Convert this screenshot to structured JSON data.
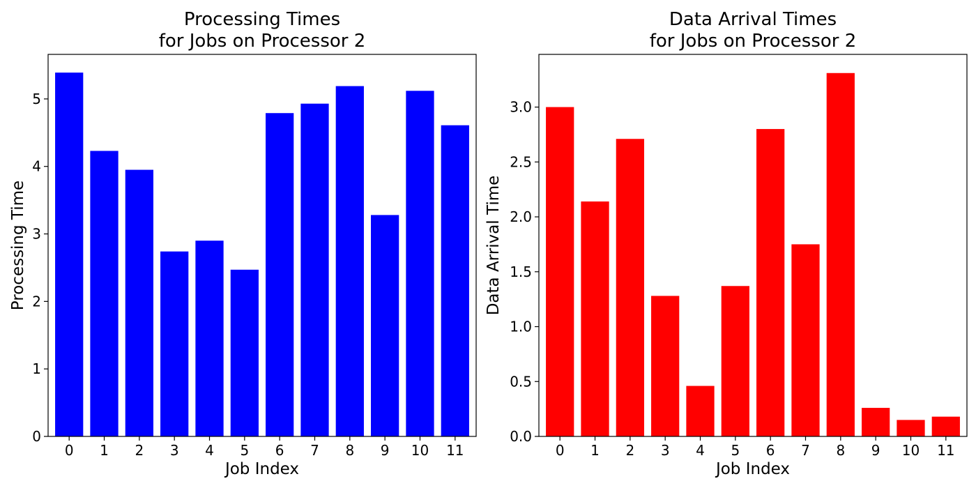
{
  "chart_data": [
    {
      "type": "bar",
      "title": [
        "Processing Times",
        "for Jobs on Processor 2"
      ],
      "xlabel": "Job Index",
      "ylabel": "Processing Time",
      "categories": [
        "0",
        "1",
        "2",
        "3",
        "4",
        "5",
        "6",
        "7",
        "8",
        "9",
        "10",
        "11"
      ],
      "values": [
        5.39,
        4.23,
        3.95,
        2.74,
        2.9,
        2.47,
        4.79,
        4.93,
        5.19,
        3.28,
        5.12,
        4.61
      ],
      "ylim": [
        0,
        5.66
      ],
      "yticks": [
        0,
        1,
        2,
        3,
        4,
        5
      ],
      "ytick_labels": [
        "0",
        "1",
        "2",
        "3",
        "4",
        "5"
      ],
      "color": "#0000ff",
      "grid": false
    },
    {
      "type": "bar",
      "title": [
        "Data Arrival Times",
        "for Jobs on Processor 2"
      ],
      "xlabel": "Job Index",
      "ylabel": "Data Arrival Time",
      "categories": [
        "0",
        "1",
        "2",
        "3",
        "4",
        "5",
        "6",
        "7",
        "8",
        "9",
        "10",
        "11"
      ],
      "values": [
        3.0,
        2.14,
        2.71,
        1.28,
        0.46,
        1.37,
        2.8,
        1.75,
        3.31,
        0.26,
        0.15,
        0.18
      ],
      "ylim": [
        0,
        3.48
      ],
      "yticks": [
        0,
        0.5,
        1.0,
        1.5,
        2.0,
        2.5,
        3.0
      ],
      "ytick_labels": [
        "0.0",
        "0.5",
        "1.0",
        "1.5",
        "2.0",
        "2.5",
        "3.0"
      ],
      "color": "#ff0000",
      "grid": false
    }
  ]
}
